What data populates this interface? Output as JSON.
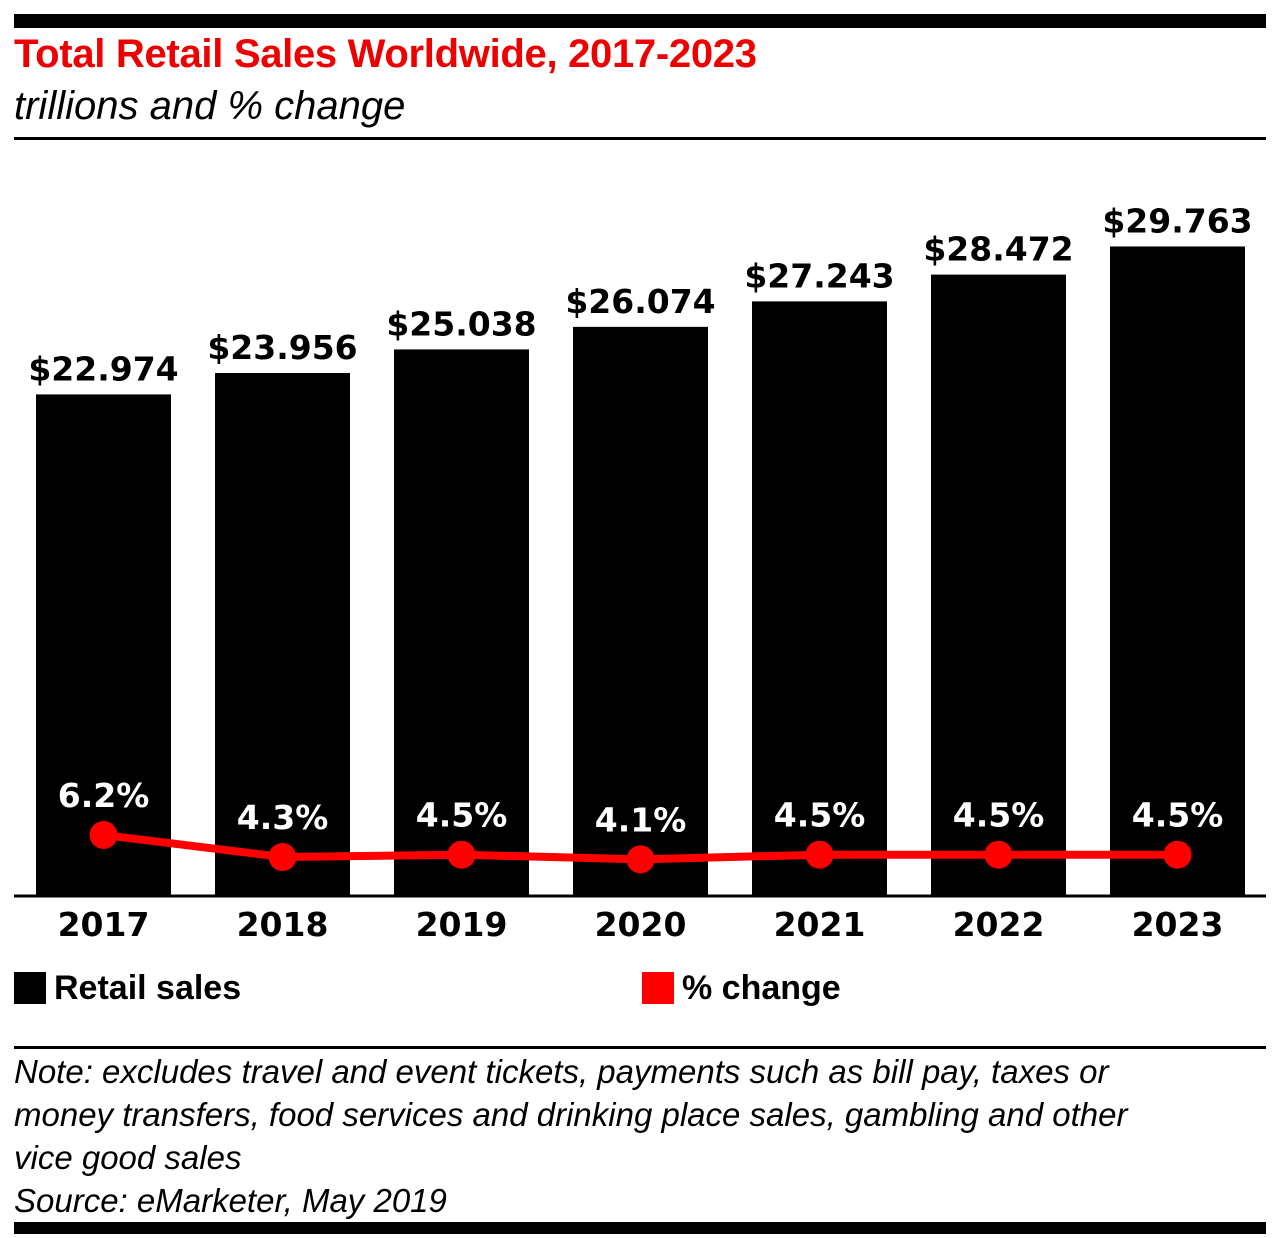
{
  "header": {
    "title": "Total Retail Sales Worldwide, 2017-2023",
    "subtitle": "trillions and % change"
  },
  "colors": {
    "bars": "#000000",
    "line": "#ff0000",
    "title": "#ee0000"
  },
  "chart_data": {
    "type": "bar",
    "title": "Total Retail Sales Worldwide, 2017-2023",
    "subtitle": "trillions and % change",
    "categories": [
      "2017",
      "2018",
      "2019",
      "2020",
      "2021",
      "2022",
      "2023"
    ],
    "series": [
      {
        "name": "Retail sales",
        "type": "bar",
        "unit": "trillions",
        "values": [
          22.974,
          23.956,
          25.038,
          26.074,
          27.243,
          28.472,
          29.763
        ],
        "labels": [
          "$22.974",
          "$23.956",
          "$25.038",
          "$26.074",
          "$27.243",
          "$28.472",
          "$29.763"
        ]
      },
      {
        "name": "% change",
        "type": "line",
        "unit": "%",
        "values": [
          6.2,
          4.3,
          4.5,
          4.1,
          4.5,
          4.5,
          4.5
        ],
        "labels": [
          "6.2%",
          "4.3%",
          "4.5%",
          "4.1%",
          "4.5%",
          "4.5%",
          "4.5%"
        ]
      }
    ],
    "xlabel": "",
    "ylabel": "",
    "grid": false,
    "legend": {
      "position": "bottom",
      "items": [
        "Retail sales",
        "% change"
      ]
    }
  },
  "notes": {
    "note_lines": [
      "Note: excludes travel and event tickets, payments such as bill pay, taxes or",
      "money transfers, food services and drinking place sales, gambling and other",
      "vice good sales"
    ],
    "source": "Source: eMarketer, May 2019"
  }
}
